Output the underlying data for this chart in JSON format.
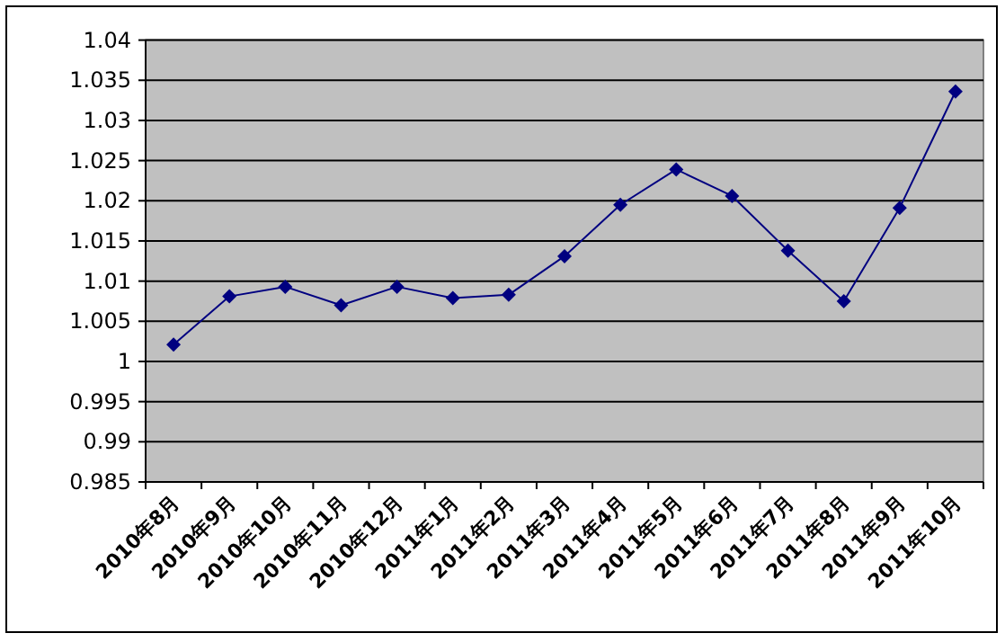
{
  "chart_data": {
    "type": "line",
    "categories": [
      "2010年8月",
      "2010年9月",
      "2010年10月",
      "2010年11月",
      "2010年12月",
      "2011年1月",
      "2011年2月",
      "2011年3月",
      "2011年4月",
      "2011年5月",
      "2011年6月",
      "2011年7月",
      "2011年8月",
      "2011年9月",
      "2011年10月"
    ],
    "values": [
      1.0021,
      1.0081,
      1.0093,
      1.007,
      1.0093,
      1.0079,
      1.0083,
      1.0131,
      1.0195,
      1.0239,
      1.0206,
      1.0138,
      1.0075,
      1.0191,
      1.0336
    ],
    "color": "#000080",
    "ylim": [
      0.985,
      1.04
    ],
    "yticks": [
      0.985,
      0.99,
      0.995,
      1,
      1.005,
      1.01,
      1.015,
      1.02,
      1.025,
      1.03,
      1.035,
      1.04
    ],
    "grid": "y",
    "marker": "diamond",
    "line_style": "solid"
  }
}
